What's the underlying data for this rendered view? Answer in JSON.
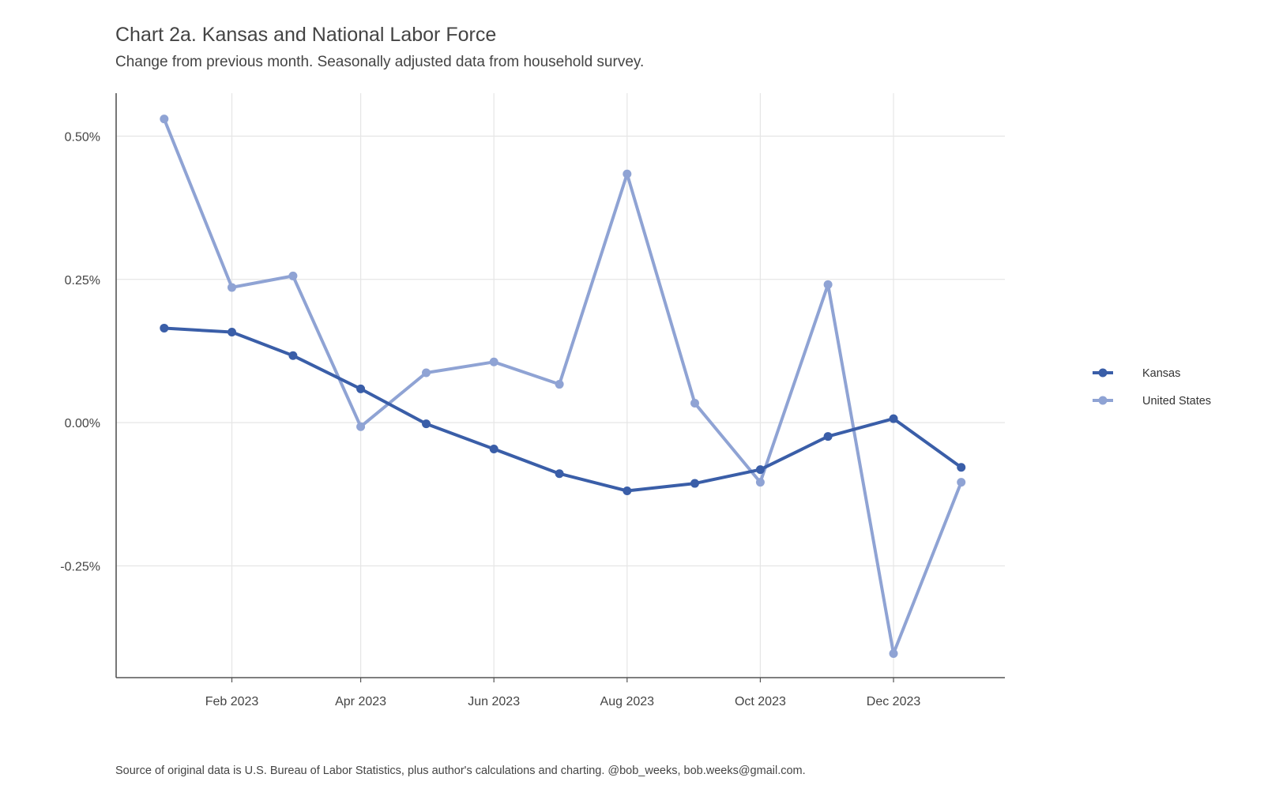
{
  "chart_data": {
    "type": "line",
    "title": "Chart 2a. Kansas and National Labor Force",
    "subtitle": "Change from previous month. Seasonally adjusted data from household survey.",
    "caption": "Source of original data is U.S. Bureau of Labor Statistics, plus author's calculations and charting. @bob_weeks, bob.weeks@gmail.com.",
    "x": [
      "2023-01-01",
      "2023-02-01",
      "2023-03-01",
      "2023-04-01",
      "2023-05-01",
      "2023-06-01",
      "2023-07-01",
      "2023-08-01",
      "2023-09-01",
      "2023-10-01",
      "2023-11-01",
      "2023-12-01",
      "2024-01-01"
    ],
    "x_ticks": [
      {
        "date": "2023-02-01",
        "label": "Feb 2023"
      },
      {
        "date": "2023-04-01",
        "label": "Apr 2023"
      },
      {
        "date": "2023-06-01",
        "label": "Jun 2023"
      },
      {
        "date": "2023-08-01",
        "label": "Aug 2023"
      },
      {
        "date": "2023-10-01",
        "label": "Oct 2023"
      },
      {
        "date": "2023-12-01",
        "label": "Dec 2023"
      }
    ],
    "y_ticks": [
      {
        "value": 0.5,
        "label": "0.50%"
      },
      {
        "value": 0.25,
        "label": "0.25%"
      },
      {
        "value": 0.0,
        "label": "0.00%"
      },
      {
        "value": -0.25,
        "label": "-0.25%"
      }
    ],
    "ylim": [
      -0.445,
      0.575
    ],
    "xlim": [
      "2022-12-10",
      "2024-01-21"
    ],
    "grid": true,
    "legend_position": "right",
    "series": [
      {
        "name": "Kansas",
        "color": "#3a5ea8",
        "values": [
          0.165,
          0.158,
          0.117,
          0.059,
          -0.002,
          -0.046,
          -0.089,
          -0.119,
          -0.106,
          -0.082,
          -0.024,
          0.007,
          -0.078
        ]
      },
      {
        "name": "United States",
        "color": "#8fa3d4",
        "values": [
          0.53,
          0.236,
          0.256,
          -0.007,
          0.087,
          0.106,
          0.067,
          0.434,
          0.034,
          -0.104,
          0.241,
          -0.403,
          -0.104
        ]
      }
    ]
  }
}
